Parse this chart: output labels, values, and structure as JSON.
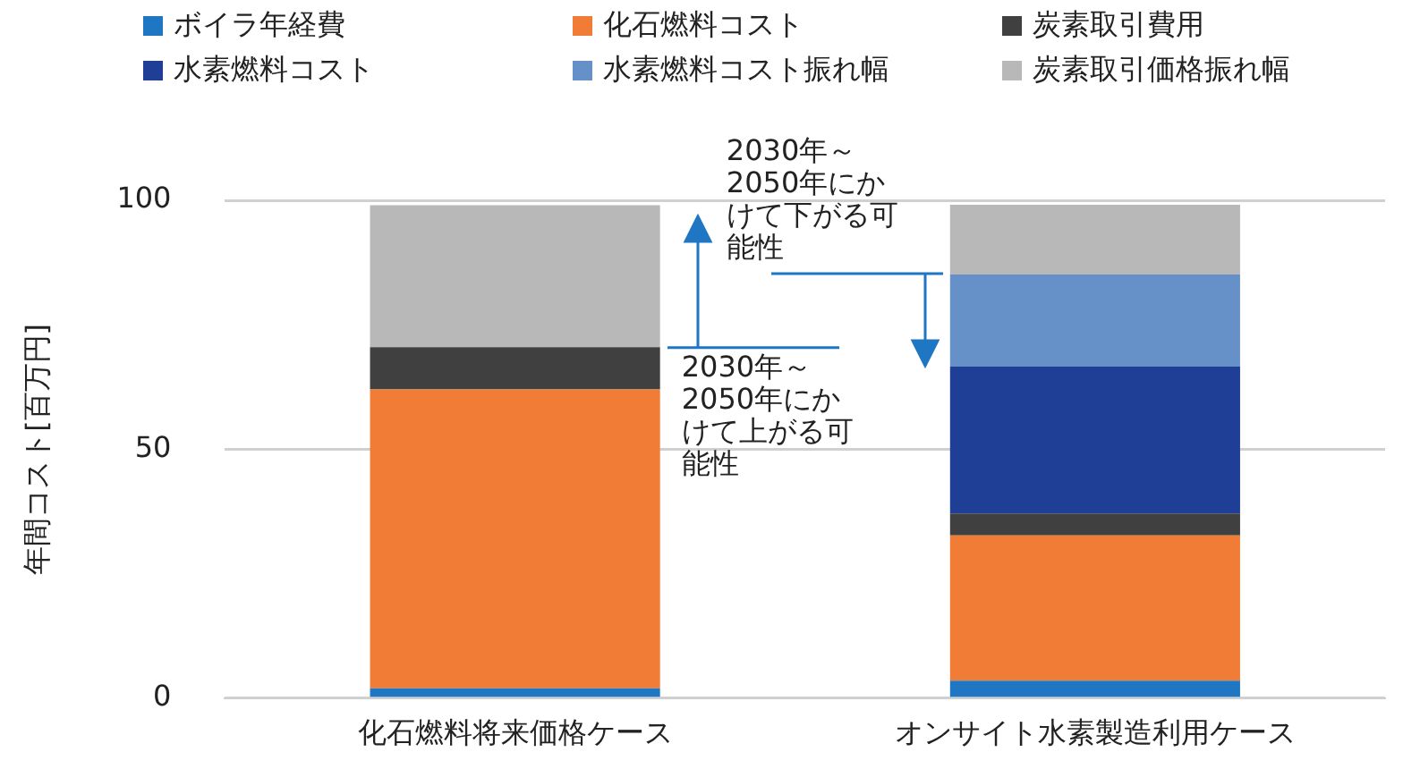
{
  "chart_data": {
    "type": "bar",
    "stacked": true,
    "ylabel": "年間コスト[百万円]",
    "categories": [
      "化石燃料将来価格ケース",
      "オンサイト水素製造利用ケース"
    ],
    "series": [
      {
        "name": "ボイラ年経費",
        "color": "#1f77c4",
        "values": [
          2,
          3.5
        ]
      },
      {
        "name": "化石燃料コスト",
        "color": "#f07c35",
        "values": [
          60,
          29.2
        ]
      },
      {
        "name": "炭素取引費用",
        "color": "#404040",
        "values": [
          8.5,
          4.4
        ]
      },
      {
        "name": "水素燃料コスト",
        "color": "#1f3f96",
        "values": [
          0,
          29.5
        ]
      },
      {
        "name": "水素燃料コスト振れ幅",
        "color": "#6690c8",
        "values": [
          0,
          18.5
        ]
      },
      {
        "name": "炭素取引価格振れ幅",
        "color": "#b8b8b8",
        "values": [
          28.5,
          14
        ]
      }
    ],
    "ylim": [
      0,
      100
    ],
    "yticks": [
      0,
      50,
      100
    ],
    "grid": "y",
    "legend": "top",
    "annotations": [
      "2030年～2050年にかけて上がる可能性",
      "2030年～2050年にかけて下がる可能性"
    ]
  }
}
